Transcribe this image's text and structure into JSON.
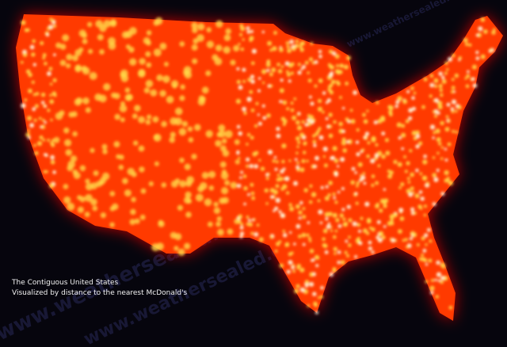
{
  "map": {
    "region": "Contiguous United States",
    "metric": "distance to the nearest McDonald's",
    "colors": {
      "background": "#06050d",
      "far": "#8a0000",
      "mid": "#ff3a00",
      "near": "#ffd94a",
      "nearest": "#fffbe0"
    }
  },
  "caption": {
    "line1": "The Contiguous United States",
    "line2": "Visualized by distance to the nearest McDonald's"
  },
  "watermark": "www.weathersealed.com"
}
